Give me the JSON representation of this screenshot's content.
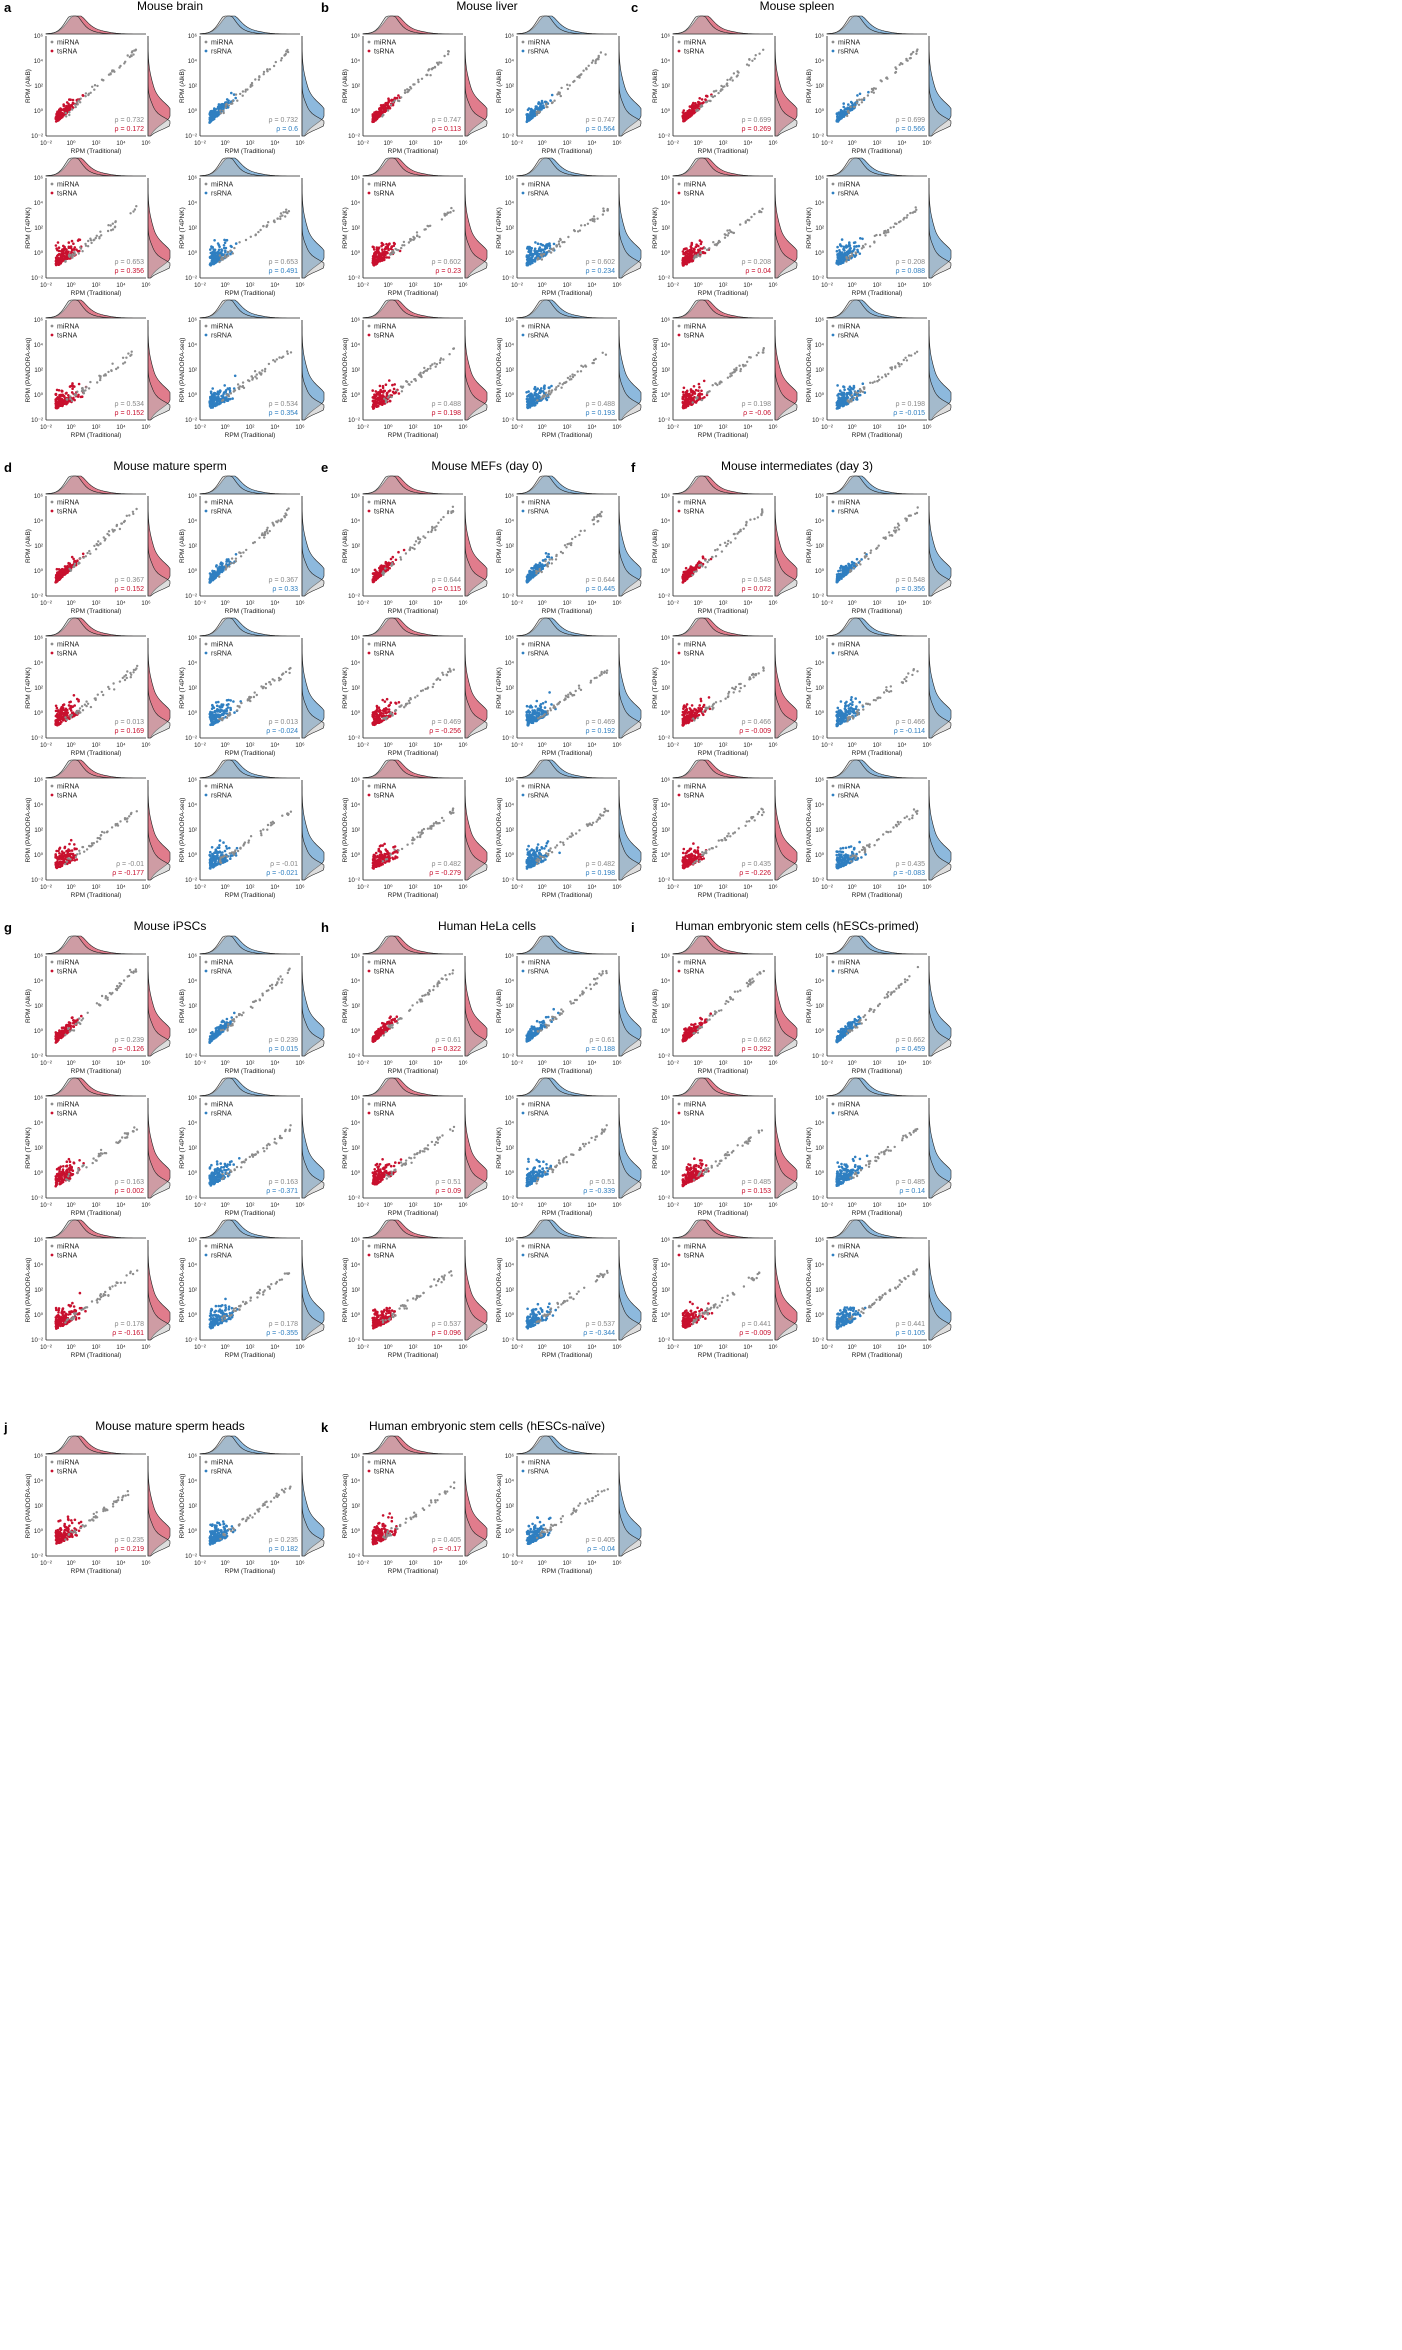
{
  "colors": {
    "miRNA": "#8c8c8c",
    "tsRNA": "#c8102e",
    "rsRNA": "#2f7fc1"
  },
  "axis_tick_labels": {
    "x": [
      "10⁻²",
      "10⁰",
      "10²",
      "10⁴",
      "10⁶"
    ],
    "y": [
      "10⁻²",
      "10⁰",
      "10²",
      "10⁴",
      "10⁶"
    ]
  },
  "x_label": "RPM (Traditional)",
  "y_labels": {
    "AB": "RPM (AlkB)",
    "T4": "RPM (T4PNK)",
    "PD": "RPM (PANDORA-seq)"
  },
  "legend_labels": {
    "mirna": "miRNA",
    "tsrna": "tsRNA",
    "rsrna": "rsRNA"
  },
  "chart_data": [
    {
      "type": "scatter",
      "letter": "a",
      "title": "Mouse brain",
      "rows": [
        {
          "method": "AB",
          "ts": {
            "rho_mirna": "ρ = 0.732",
            "rho_other": "ρ = 0.172"
          },
          "rs": {
            "rho_mirna": "ρ = 0.732",
            "rho_other": "ρ = 0.6"
          }
        },
        {
          "method": "T4",
          "ts": {
            "rho_mirna": "ρ = 0.653",
            "rho_other": "ρ = 0.356"
          },
          "rs": {
            "rho_mirna": "ρ = 0.653",
            "rho_other": "ρ = 0.491"
          }
        },
        {
          "method": "PD",
          "ts": {
            "rho_mirna": "ρ = 0.534",
            "rho_other": "ρ = 0.152"
          },
          "rs": {
            "rho_mirna": "ρ = 0.534",
            "rho_other": "ρ = 0.354"
          }
        }
      ]
    },
    {
      "type": "scatter",
      "letter": "b",
      "title": "Mouse liver",
      "rows": [
        {
          "method": "AB",
          "ts": {
            "rho_mirna": "ρ = 0.747",
            "rho_other": "ρ = 0.113"
          },
          "rs": {
            "rho_mirna": "ρ = 0.747",
            "rho_other": "ρ = 0.564"
          }
        },
        {
          "method": "T4",
          "ts": {
            "rho_mirna": "ρ = 0.602",
            "rho_other": "ρ = 0.23"
          },
          "rs": {
            "rho_mirna": "ρ = 0.602",
            "rho_other": "ρ = 0.234"
          }
        },
        {
          "method": "PD",
          "ts": {
            "rho_mirna": "ρ = 0.488",
            "rho_other": "ρ = 0.198"
          },
          "rs": {
            "rho_mirna": "ρ = 0.488",
            "rho_other": "ρ = 0.193"
          }
        }
      ]
    },
    {
      "type": "scatter",
      "letter": "c",
      "title": "Mouse spleen",
      "rows": [
        {
          "method": "AB",
          "ts": {
            "rho_mirna": "ρ = 0.699",
            "rho_other": "ρ = 0.269"
          },
          "rs": {
            "rho_mirna": "ρ = 0.699",
            "rho_other": "ρ = 0.566"
          }
        },
        {
          "method": "T4",
          "ts": {
            "rho_mirna": "ρ = 0.208",
            "rho_other": "ρ = 0.04"
          },
          "rs": {
            "rho_mirna": "ρ = 0.208",
            "rho_other": "ρ = 0.088"
          }
        },
        {
          "method": "PD",
          "ts": {
            "rho_mirna": "ρ = 0.198",
            "rho_other": "ρ = -0.06"
          },
          "rs": {
            "rho_mirna": "ρ = 0.198",
            "rho_other": "ρ = -0.015"
          }
        }
      ]
    },
    {
      "type": "scatter",
      "letter": "d",
      "title": "Mouse mature sperm",
      "rows": [
        {
          "method": "AB",
          "ts": {
            "rho_mirna": "ρ = 0.367",
            "rho_other": "ρ = 0.152"
          },
          "rs": {
            "rho_mirna": "ρ = 0.367",
            "rho_other": "ρ = 0.33"
          }
        },
        {
          "method": "T4",
          "ts": {
            "rho_mirna": "ρ = 0.013",
            "rho_other": "ρ = 0.169"
          },
          "rs": {
            "rho_mirna": "ρ = 0.013",
            "rho_other": "ρ = -0.024"
          }
        },
        {
          "method": "PD",
          "ts": {
            "rho_mirna": "ρ = -0.01",
            "rho_other": "ρ = -0.177"
          },
          "rs": {
            "rho_mirna": "ρ = -0.01",
            "rho_other": "ρ = -0.021"
          }
        }
      ]
    },
    {
      "type": "scatter",
      "letter": "e",
      "title": "Mouse MEFs (day 0)",
      "rows": [
        {
          "method": "AB",
          "ts": {
            "rho_mirna": "ρ = 0.644",
            "rho_other": "ρ = 0.115"
          },
          "rs": {
            "rho_mirna": "ρ = 0.644",
            "rho_other": "ρ = 0.445"
          }
        },
        {
          "method": "T4",
          "ts": {
            "rho_mirna": "ρ = 0.469",
            "rho_other": "ρ = -0.256"
          },
          "rs": {
            "rho_mirna": "ρ = 0.469",
            "rho_other": "ρ = 0.192"
          }
        },
        {
          "method": "PD",
          "ts": {
            "rho_mirna": "ρ = 0.482",
            "rho_other": "ρ = -0.279"
          },
          "rs": {
            "rho_mirna": "ρ = 0.482",
            "rho_other": "ρ = 0.198"
          }
        }
      ]
    },
    {
      "type": "scatter",
      "letter": "f",
      "title": "Mouse intermediates (day 3)",
      "rows": [
        {
          "method": "AB",
          "ts": {
            "rho_mirna": "ρ = 0.548",
            "rho_other": "ρ = 0.072"
          },
          "rs": {
            "rho_mirna": "ρ = 0.548",
            "rho_other": "ρ = 0.356"
          }
        },
        {
          "method": "T4",
          "ts": {
            "rho_mirna": "ρ = 0.466",
            "rho_other": "ρ = -0.009"
          },
          "rs": {
            "rho_mirna": "ρ = 0.466",
            "rho_other": "ρ = -0.114"
          }
        },
        {
          "method": "PD",
          "ts": {
            "rho_mirna": "ρ = 0.435",
            "rho_other": "ρ = -0.226"
          },
          "rs": {
            "rho_mirna": "ρ = 0.435",
            "rho_other": "ρ = -0.083"
          }
        }
      ]
    },
    {
      "type": "scatter",
      "letter": "g",
      "title": "Mouse iPSCs",
      "rows": [
        {
          "method": "AB",
          "ts": {
            "rho_mirna": "ρ = 0.239",
            "rho_other": "ρ = -0.126"
          },
          "rs": {
            "rho_mirna": "ρ = 0.239",
            "rho_other": "ρ = 0.015"
          }
        },
        {
          "method": "T4",
          "ts": {
            "rho_mirna": "ρ = 0.163",
            "rho_other": "ρ = 0.002"
          },
          "rs": {
            "rho_mirna": "ρ = 0.163",
            "rho_other": "ρ = -0.371"
          }
        },
        {
          "method": "PD",
          "ts": {
            "rho_mirna": "ρ = 0.178",
            "rho_other": "ρ = -0.161"
          },
          "rs": {
            "rho_mirna": "ρ = 0.178",
            "rho_other": "ρ = -0.355"
          }
        }
      ]
    },
    {
      "type": "scatter",
      "letter": "h",
      "title": "Human HeLa cells",
      "rows": [
        {
          "method": "AB",
          "ts": {
            "rho_mirna": "ρ = 0.61",
            "rho_other": "ρ = 0.322"
          },
          "rs": {
            "rho_mirna": "ρ = 0.61",
            "rho_other": "ρ = 0.188"
          }
        },
        {
          "method": "T4",
          "ts": {
            "rho_mirna": "ρ = 0.51",
            "rho_other": "ρ = 0.09"
          },
          "rs": {
            "rho_mirna": "ρ = 0.51",
            "rho_other": "ρ = -0.339"
          }
        },
        {
          "method": "PD",
          "ts": {
            "rho_mirna": "ρ = 0.537",
            "rho_other": "ρ = 0.096"
          },
          "rs": {
            "rho_mirna": "ρ = 0.537",
            "rho_other": "ρ = -0.344"
          }
        }
      ]
    },
    {
      "type": "scatter",
      "letter": "i",
      "title": "Human embryonic stem cells (hESCs-primed)",
      "rows": [
        {
          "method": "AB",
          "ts": {
            "rho_mirna": "ρ = 0.662",
            "rho_other": "ρ = 0.292"
          },
          "rs": {
            "rho_mirna": "ρ = 0.662",
            "rho_other": "ρ = 0.459"
          }
        },
        {
          "method": "T4",
          "ts": {
            "rho_mirna": "ρ = 0.485",
            "rho_other": "ρ = 0.153"
          },
          "rs": {
            "rho_mirna": "ρ = 0.485",
            "rho_other": "ρ = 0.14"
          }
        },
        {
          "method": "PD",
          "ts": {
            "rho_mirna": "ρ = 0.441",
            "rho_other": "ρ = -0.009"
          },
          "rs": {
            "rho_mirna": "ρ = 0.441",
            "rho_other": "ρ = 0.105"
          }
        }
      ]
    },
    {
      "type": "scatter",
      "letter": "j",
      "title": "Mouse mature sperm heads",
      "rows": [
        {
          "method": "PD",
          "ts": {
            "rho_mirna": "ρ = 0.235",
            "rho_other": "ρ = 0.219"
          },
          "rs": {
            "rho_mirna": "ρ = 0.235",
            "rho_other": "ρ = 0.182"
          }
        }
      ]
    },
    {
      "type": "scatter",
      "letter": "k",
      "title": "Human embryonic stem cells (hESCs-naïve)",
      "rows": [
        {
          "method": "PD",
          "ts": {
            "rho_mirna": "ρ = 0.405",
            "rho_other": "ρ = -0.17"
          },
          "rs": {
            "rho_mirna": "ρ = 0.405",
            "rho_other": "ρ = -0.04"
          }
        }
      ]
    }
  ]
}
